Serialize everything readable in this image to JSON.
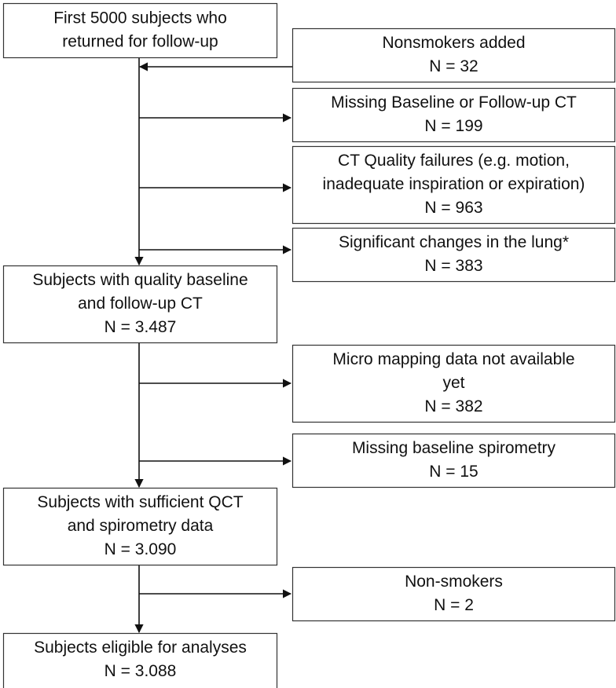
{
  "nodes": [
    {
      "lines": [
        "First 5000 subjects who",
        "returned for follow-up"
      ]
    },
    {
      "lines": [
        "Nonsmokers added",
        "N = 32"
      ]
    },
    {
      "lines": [
        "Missing Baseline or Follow-up CT",
        "N = 199"
      ]
    },
    {
      "lines": [
        "CT Quality failures (e.g. motion,",
        "inadequate inspiration or expiration)",
        "N = 963"
      ]
    },
    {
      "lines": [
        "Significant changes in the lung*",
        "N = 383"
      ]
    },
    {
      "lines": [
        "Subjects with quality baseline",
        "and follow-up CT",
        "N = 3.487"
      ]
    },
    {
      "lines": [
        "Micro mapping data not available",
        "yet",
        "N = 382"
      ]
    },
    {
      "lines": [
        "Missing baseline spirometry",
        "N = 15"
      ]
    },
    {
      "lines": [
        "Subjects with sufficient QCT",
        "and spirometry data",
        "N = 3.090"
      ]
    },
    {
      "lines": [
        "Non-smokers",
        "N = 2"
      ]
    },
    {
      "lines": [
        "Subjects eligible for analyses",
        "N = 3.088"
      ]
    }
  ]
}
